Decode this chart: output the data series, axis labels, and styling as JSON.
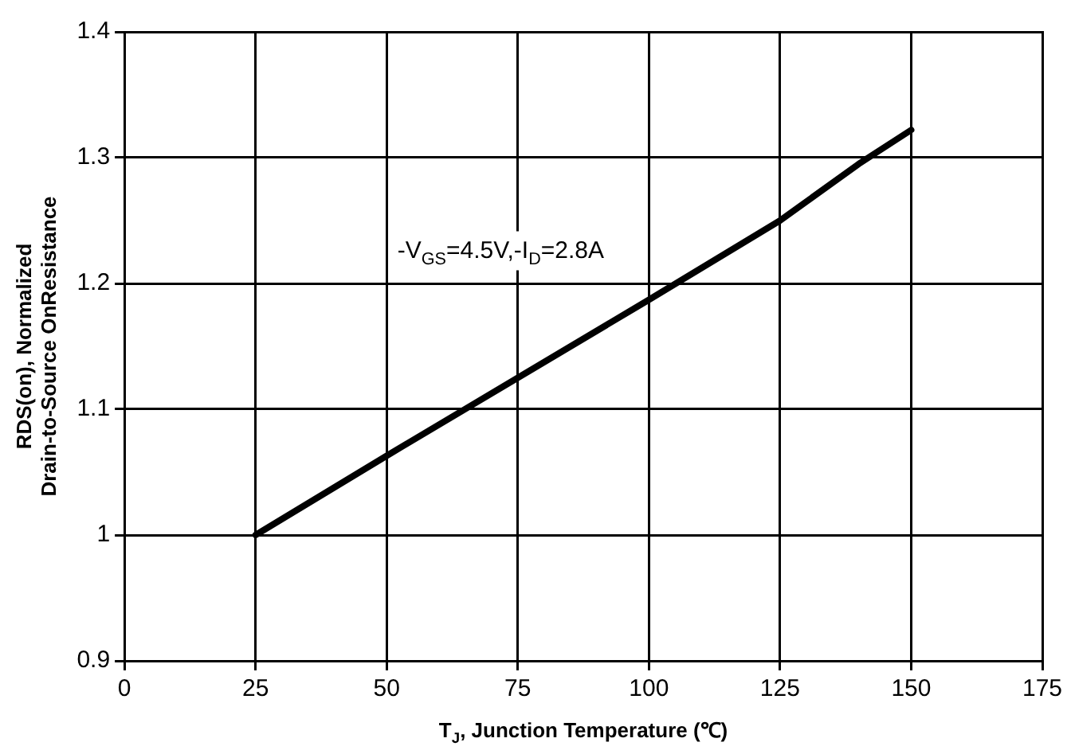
{
  "chart_data": {
    "type": "line",
    "xlabel": "T$_{J}$, Junction Temperature (℃)",
    "ylabel": "RDS(on), Normalized\nDrain-to-Source OnResistance",
    "annotations": [
      "-V$_{GS}$=4.5V,-I$_{D}$=2.8A"
    ],
    "x": [
      25,
      50,
      75,
      100,
      125,
      140,
      150
    ],
    "series": [
      {
        "color": "#000000",
        "values": [
          1.0,
          1.063,
          1.125,
          1.187,
          1.25,
          1.295,
          1.322
        ]
      }
    ],
    "xlim": [
      0,
      175
    ],
    "xticks": [
      0,
      25,
      50,
      75,
      100,
      125,
      150,
      175
    ],
    "ylim": [
      0.9,
      1.4
    ],
    "yticks": [
      0.9,
      1,
      1.1,
      1.2,
      1.3,
      1.4
    ],
    "grid": true,
    "legend": false,
    "marker": "none",
    "line_style": "solid"
  }
}
